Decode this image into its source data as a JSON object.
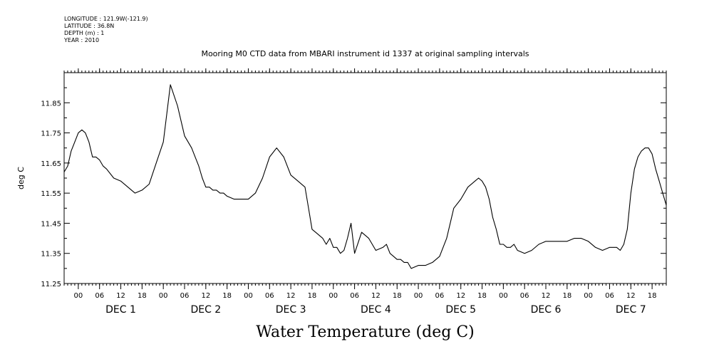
{
  "header": {
    "longitude": "LONGITUDE : 121.9W(-121.9)",
    "latitude": "LATITUDE : 36.8N",
    "depth": "DEPTH (m) : 1",
    "year": "YEAR : 2010"
  },
  "chart_data": {
    "type": "line",
    "title": "Mooring M0 CTD data from MBARI instrument id 1337 at original sampling intervals",
    "xlabel": "Water Temperature (deg C)",
    "ylabel": "deg C",
    "ylim": [
      11.25,
      11.95
    ],
    "y_ticks": [
      "11.25",
      "11.35",
      "11.45",
      "11.55",
      "11.65",
      "11.75",
      "11.85"
    ],
    "x_unit": "hours since Nov 30 20:00",
    "xlim": [
      0,
      170
    ],
    "hour_tick_labels": [
      "00",
      "06",
      "12",
      "18",
      "00",
      "06",
      "12",
      "18",
      "00",
      "06",
      "12",
      "18",
      "00",
      "06",
      "12",
      "18",
      "00",
      "06",
      "12",
      "18",
      "00",
      "06",
      "12",
      "18",
      "00",
      "06",
      "12",
      "18"
    ],
    "day_labels": [
      "DEC  1",
      "DEC  2",
      "DEC  3",
      "DEC  4",
      "DEC  5",
      "DEC  6",
      "DEC  7"
    ],
    "series": [
      {
        "x": [
          0,
          1,
          2,
          3,
          4,
          5,
          6,
          7,
          8,
          9,
          10,
          11,
          12,
          14,
          16,
          18,
          20,
          22,
          24,
          26,
          28,
          30,
          32,
          34,
          35,
          36,
          37,
          38,
          39,
          40,
          41,
          42,
          43,
          44,
          45,
          46,
          48,
          50,
          52,
          54,
          56,
          58,
          60,
          62,
          64,
          66,
          68,
          69,
          70,
          71,
          72,
          73,
          74,
          75,
          76,
          77,
          78,
          79,
          80,
          81,
          82,
          84,
          86,
          88,
          90,
          91,
          92,
          93,
          94,
          95,
          96,
          97,
          98,
          100,
          102,
          104,
          106,
          108,
          110,
          112,
          114,
          116,
          117,
          118,
          119,
          120,
          121,
          122,
          123,
          124,
          125,
          126,
          127,
          128,
          130,
          132,
          134,
          136,
          138,
          140,
          142,
          144,
          146,
          148,
          150,
          152,
          154,
          156,
          157,
          158,
          159,
          160,
          161,
          162,
          163,
          164,
          165,
          166,
          167,
          168,
          169,
          170
        ],
        "values": [
          11.62,
          11.64,
          11.69,
          11.72,
          11.75,
          11.76,
          11.75,
          11.72,
          11.67,
          11.67,
          11.66,
          11.64,
          11.63,
          11.6,
          11.59,
          11.57,
          11.55,
          11.56,
          11.58,
          11.65,
          11.72,
          11.91,
          11.84,
          11.74,
          11.72,
          11.7,
          11.67,
          11.64,
          11.6,
          11.57,
          11.57,
          11.56,
          11.56,
          11.55,
          11.55,
          11.54,
          11.53,
          11.53,
          11.53,
          11.55,
          11.6,
          11.67,
          11.7,
          11.67,
          11.61,
          11.59,
          11.57,
          11.5,
          11.43,
          11.42,
          11.41,
          11.4,
          11.38,
          11.4,
          11.37,
          11.37,
          11.35,
          11.36,
          11.4,
          11.45,
          11.35,
          11.42,
          11.4,
          11.36,
          11.37,
          11.38,
          11.35,
          11.34,
          11.33,
          11.33,
          11.32,
          11.32,
          11.3,
          11.31,
          11.31,
          11.32,
          11.34,
          11.4,
          11.5,
          11.53,
          11.57,
          11.59,
          11.6,
          11.59,
          11.57,
          11.53,
          11.47,
          11.43,
          11.38,
          11.38,
          11.37,
          11.37,
          11.38,
          11.36,
          11.35,
          11.36,
          11.38,
          11.39,
          11.39,
          11.39,
          11.39,
          11.4,
          11.4,
          11.39,
          11.37,
          11.36,
          11.37,
          11.37,
          11.36,
          11.38,
          11.43,
          11.55,
          11.63,
          11.67,
          11.69,
          11.7,
          11.7,
          11.68,
          11.63,
          11.59,
          11.55,
          11.51
        ]
      }
    ]
  }
}
